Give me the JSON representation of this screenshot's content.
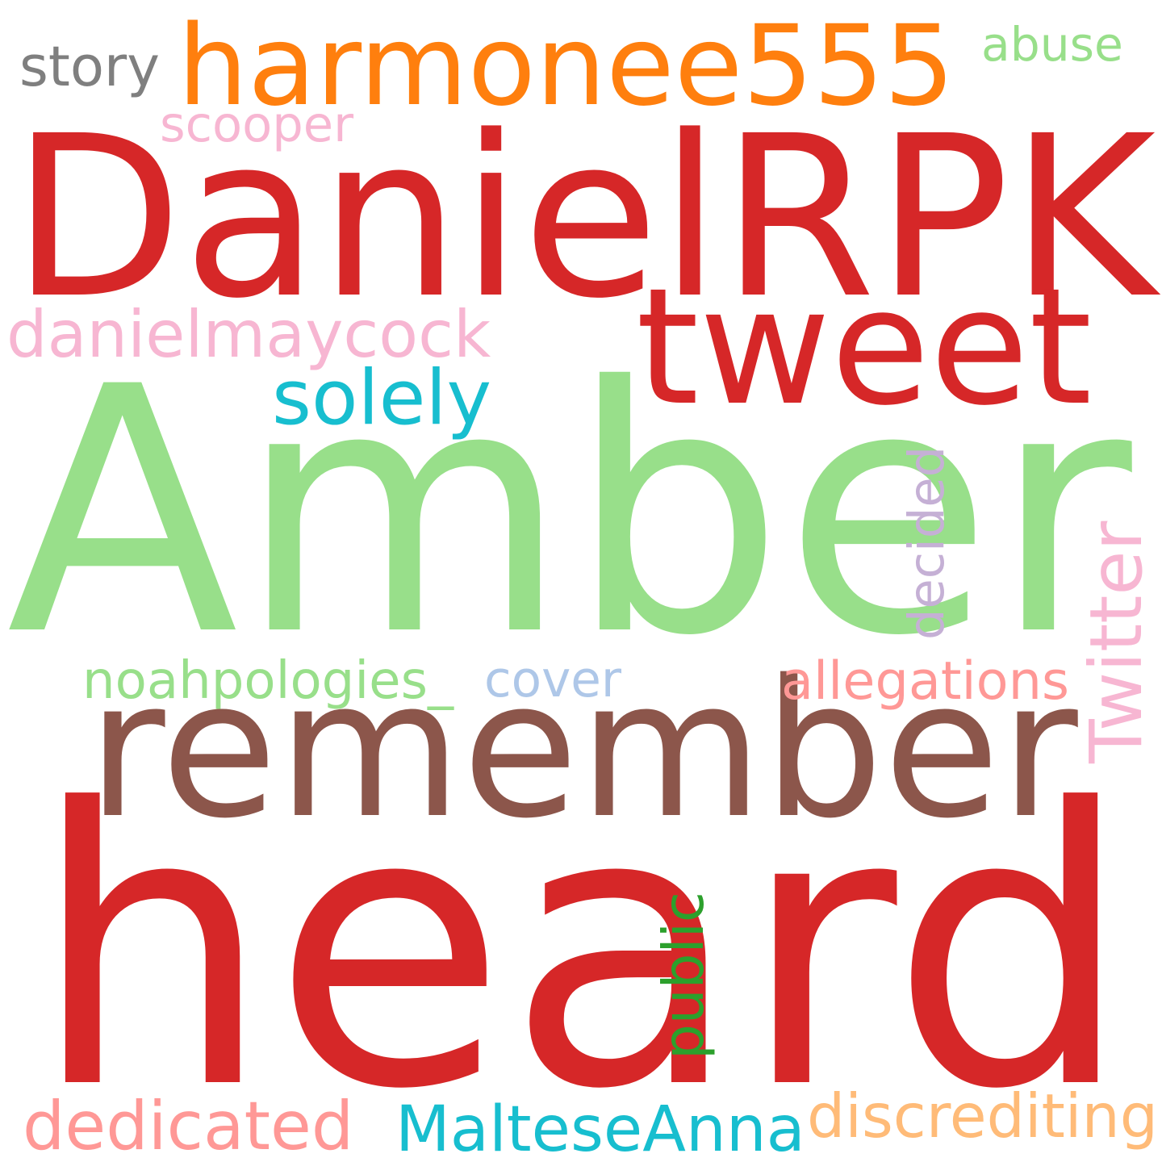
{
  "words": [
    {
      "text": "heard",
      "color": "#d62728"
    },
    {
      "text": "Amber",
      "color": "#98df8a"
    },
    {
      "text": "DanielRPK",
      "color": "#d62728"
    },
    {
      "text": "remember",
      "color": "#8c564b"
    },
    {
      "text": "harmonee555",
      "color": "#ff7f0e"
    },
    {
      "text": "tweet",
      "color": "#d62728"
    },
    {
      "text": "danielmaycock",
      "color": "#f7b6d2"
    },
    {
      "text": "dedicated",
      "color": "#ff9896"
    },
    {
      "text": "MalteseAnna",
      "color": "#17becf"
    },
    {
      "text": "Twitter",
      "color": "#f7b6d2"
    },
    {
      "text": "solely",
      "color": "#17becf"
    },
    {
      "text": "discrediting",
      "color": "#ffbb78"
    },
    {
      "text": "noahpologies_",
      "color": "#98df8a"
    },
    {
      "text": "allegations",
      "color": "#ff9896"
    },
    {
      "text": "scooper",
      "color": "#f7b6d2"
    },
    {
      "text": "abuse",
      "color": "#98df8a"
    },
    {
      "text": "story",
      "color": "#7f7f7f"
    },
    {
      "text": "cover",
      "color": "#aec7e8"
    },
    {
      "text": "decided",
      "color": "#c5b0d5"
    },
    {
      "text": "public",
      "color": "#2ca02c"
    }
  ]
}
